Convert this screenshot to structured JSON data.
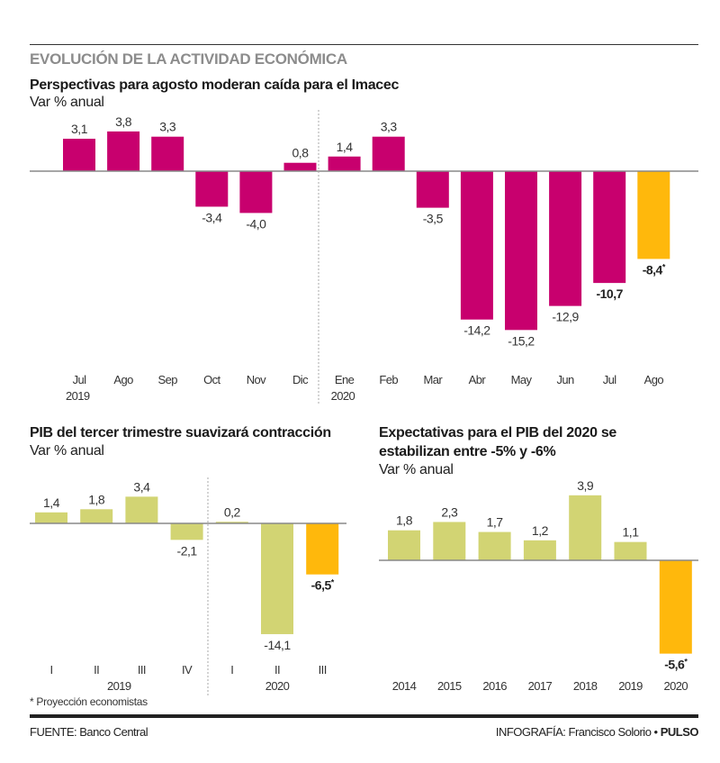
{
  "header": {
    "kicker": "EVOLUCIÓN DE LA ACTIVIDAD ECONÓMICA"
  },
  "colors": {
    "imacec": "#c8006e",
    "pib": "#d2d473",
    "projection": "#ffb80c",
    "axis": "#888888"
  },
  "chart_data": [
    {
      "type": "bar",
      "title": "Perspectivas para agosto moderan caída para el Imacec",
      "ylabel": "Var % anual",
      "categories": [
        "Jul",
        "Ago",
        "Sep",
        "Oct",
        "Nov",
        "Dic",
        "Ene",
        "Feb",
        "Mar",
        "Abr",
        "May",
        "Jun",
        "Jul",
        "Ago"
      ],
      "group_labels": [
        {
          "label": "2019",
          "start_index": 0
        },
        {
          "label": "2020",
          "start_index": 6
        }
      ],
      "values": [
        3.1,
        3.8,
        3.3,
        -3.4,
        -4.0,
        0.8,
        1.4,
        3.3,
        -3.5,
        -14.2,
        -15.2,
        -12.9,
        -10.7,
        -8.4
      ],
      "value_labels": [
        "3,1",
        "3,8",
        "3,3",
        "-3,4",
        "-4,0",
        "0,8",
        "1,4",
        "3,3",
        "-3,5",
        "-14,2",
        "-15,2",
        "-12,9",
        "-10,7",
        "-8,4*"
      ],
      "projection_index": [
        13
      ],
      "bold_index": [
        12,
        13
      ],
      "divider_after_index": 5,
      "grid": false
    },
    {
      "type": "bar",
      "title": "PIB del tercer trimestre suavizará contracción",
      "ylabel": "Var % anual",
      "categories": [
        "I",
        "II",
        "III",
        "IV",
        "I",
        "II",
        "III"
      ],
      "group_labels": [
        {
          "label": "2019",
          "start_index": 0
        },
        {
          "label": "2020",
          "start_index": 4
        }
      ],
      "values": [
        1.4,
        1.8,
        3.4,
        -2.1,
        0.2,
        -14.1,
        -6.5
      ],
      "value_labels": [
        "1,4",
        "1,8",
        "3,4",
        "-2,1",
        "0,2",
        "-14,1",
        "-6,5*"
      ],
      "projection_index": [
        6
      ],
      "bold_index": [
        6
      ],
      "divider_after_index": 3,
      "grid": false
    },
    {
      "type": "bar",
      "title": "Expectativas para el PIB del 2020 se estabilizan entre  -5% y -6%",
      "title_lines": [
        "Expectativas para el PIB del 2020 se",
        "estabilizan entre  -5% y -6%"
      ],
      "ylabel": "Var % anual",
      "categories": [
        "2014",
        "2015",
        "2016",
        "2017",
        "2018",
        "2019",
        "2020"
      ],
      "values": [
        1.8,
        2.3,
        1.7,
        1.2,
        3.9,
        1.1,
        -5.6
      ],
      "value_labels": [
        "1,8",
        "2,3",
        "1,7",
        "1,2",
        "3,9",
        "1,1",
        "-5,6*"
      ],
      "projection_index": [
        6
      ],
      "bold_index": [
        6
      ],
      "grid": false
    }
  ],
  "footnote": "* Proyección economistas",
  "footer": {
    "source": "FUENTE: Banco Central",
    "credit": "INFOGRAFÍA: Francisco Solorio • ",
    "brand": "PULSO"
  }
}
